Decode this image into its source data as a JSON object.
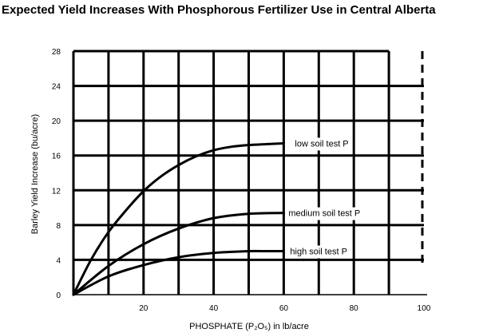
{
  "chart_data": {
    "type": "line",
    "title": "Expected Yield Increases With Phosphorous Fertilizer  Use in Central Alberta",
    "xlabel": "PHOSPHATE (P₂O₅)  in lb/acre",
    "ylabel": "Barley Yield Increase (bu/acre)",
    "xlim": [
      0,
      100
    ],
    "ylim": [
      0,
      28
    ],
    "x_ticks": [
      20,
      40,
      60,
      80,
      100
    ],
    "y_ticks": [
      0,
      4,
      8,
      12,
      16,
      20,
      24,
      28
    ],
    "grid": true,
    "series": [
      {
        "name": "low soil test P",
        "x": [
          0,
          5,
          10,
          15,
          20,
          25,
          30,
          35,
          40,
          45,
          50,
          55,
          60
        ],
        "values": [
          0,
          4.0,
          7.2,
          9.7,
          11.9,
          13.6,
          14.9,
          15.9,
          16.6,
          17.0,
          17.2,
          17.3,
          17.4
        ]
      },
      {
        "name": "medium soil test P",
        "x": [
          0,
          10,
          20,
          30,
          40,
          50,
          60
        ],
        "values": [
          0,
          3.3,
          5.8,
          7.6,
          8.8,
          9.3,
          9.4
        ]
      },
      {
        "name": "high soil test P",
        "x": [
          0,
          10,
          20,
          30,
          40,
          50,
          55,
          60
        ],
        "values": [
          0,
          2.1,
          3.4,
          4.3,
          4.8,
          5.0,
          5.0,
          5.0
        ]
      }
    ]
  }
}
